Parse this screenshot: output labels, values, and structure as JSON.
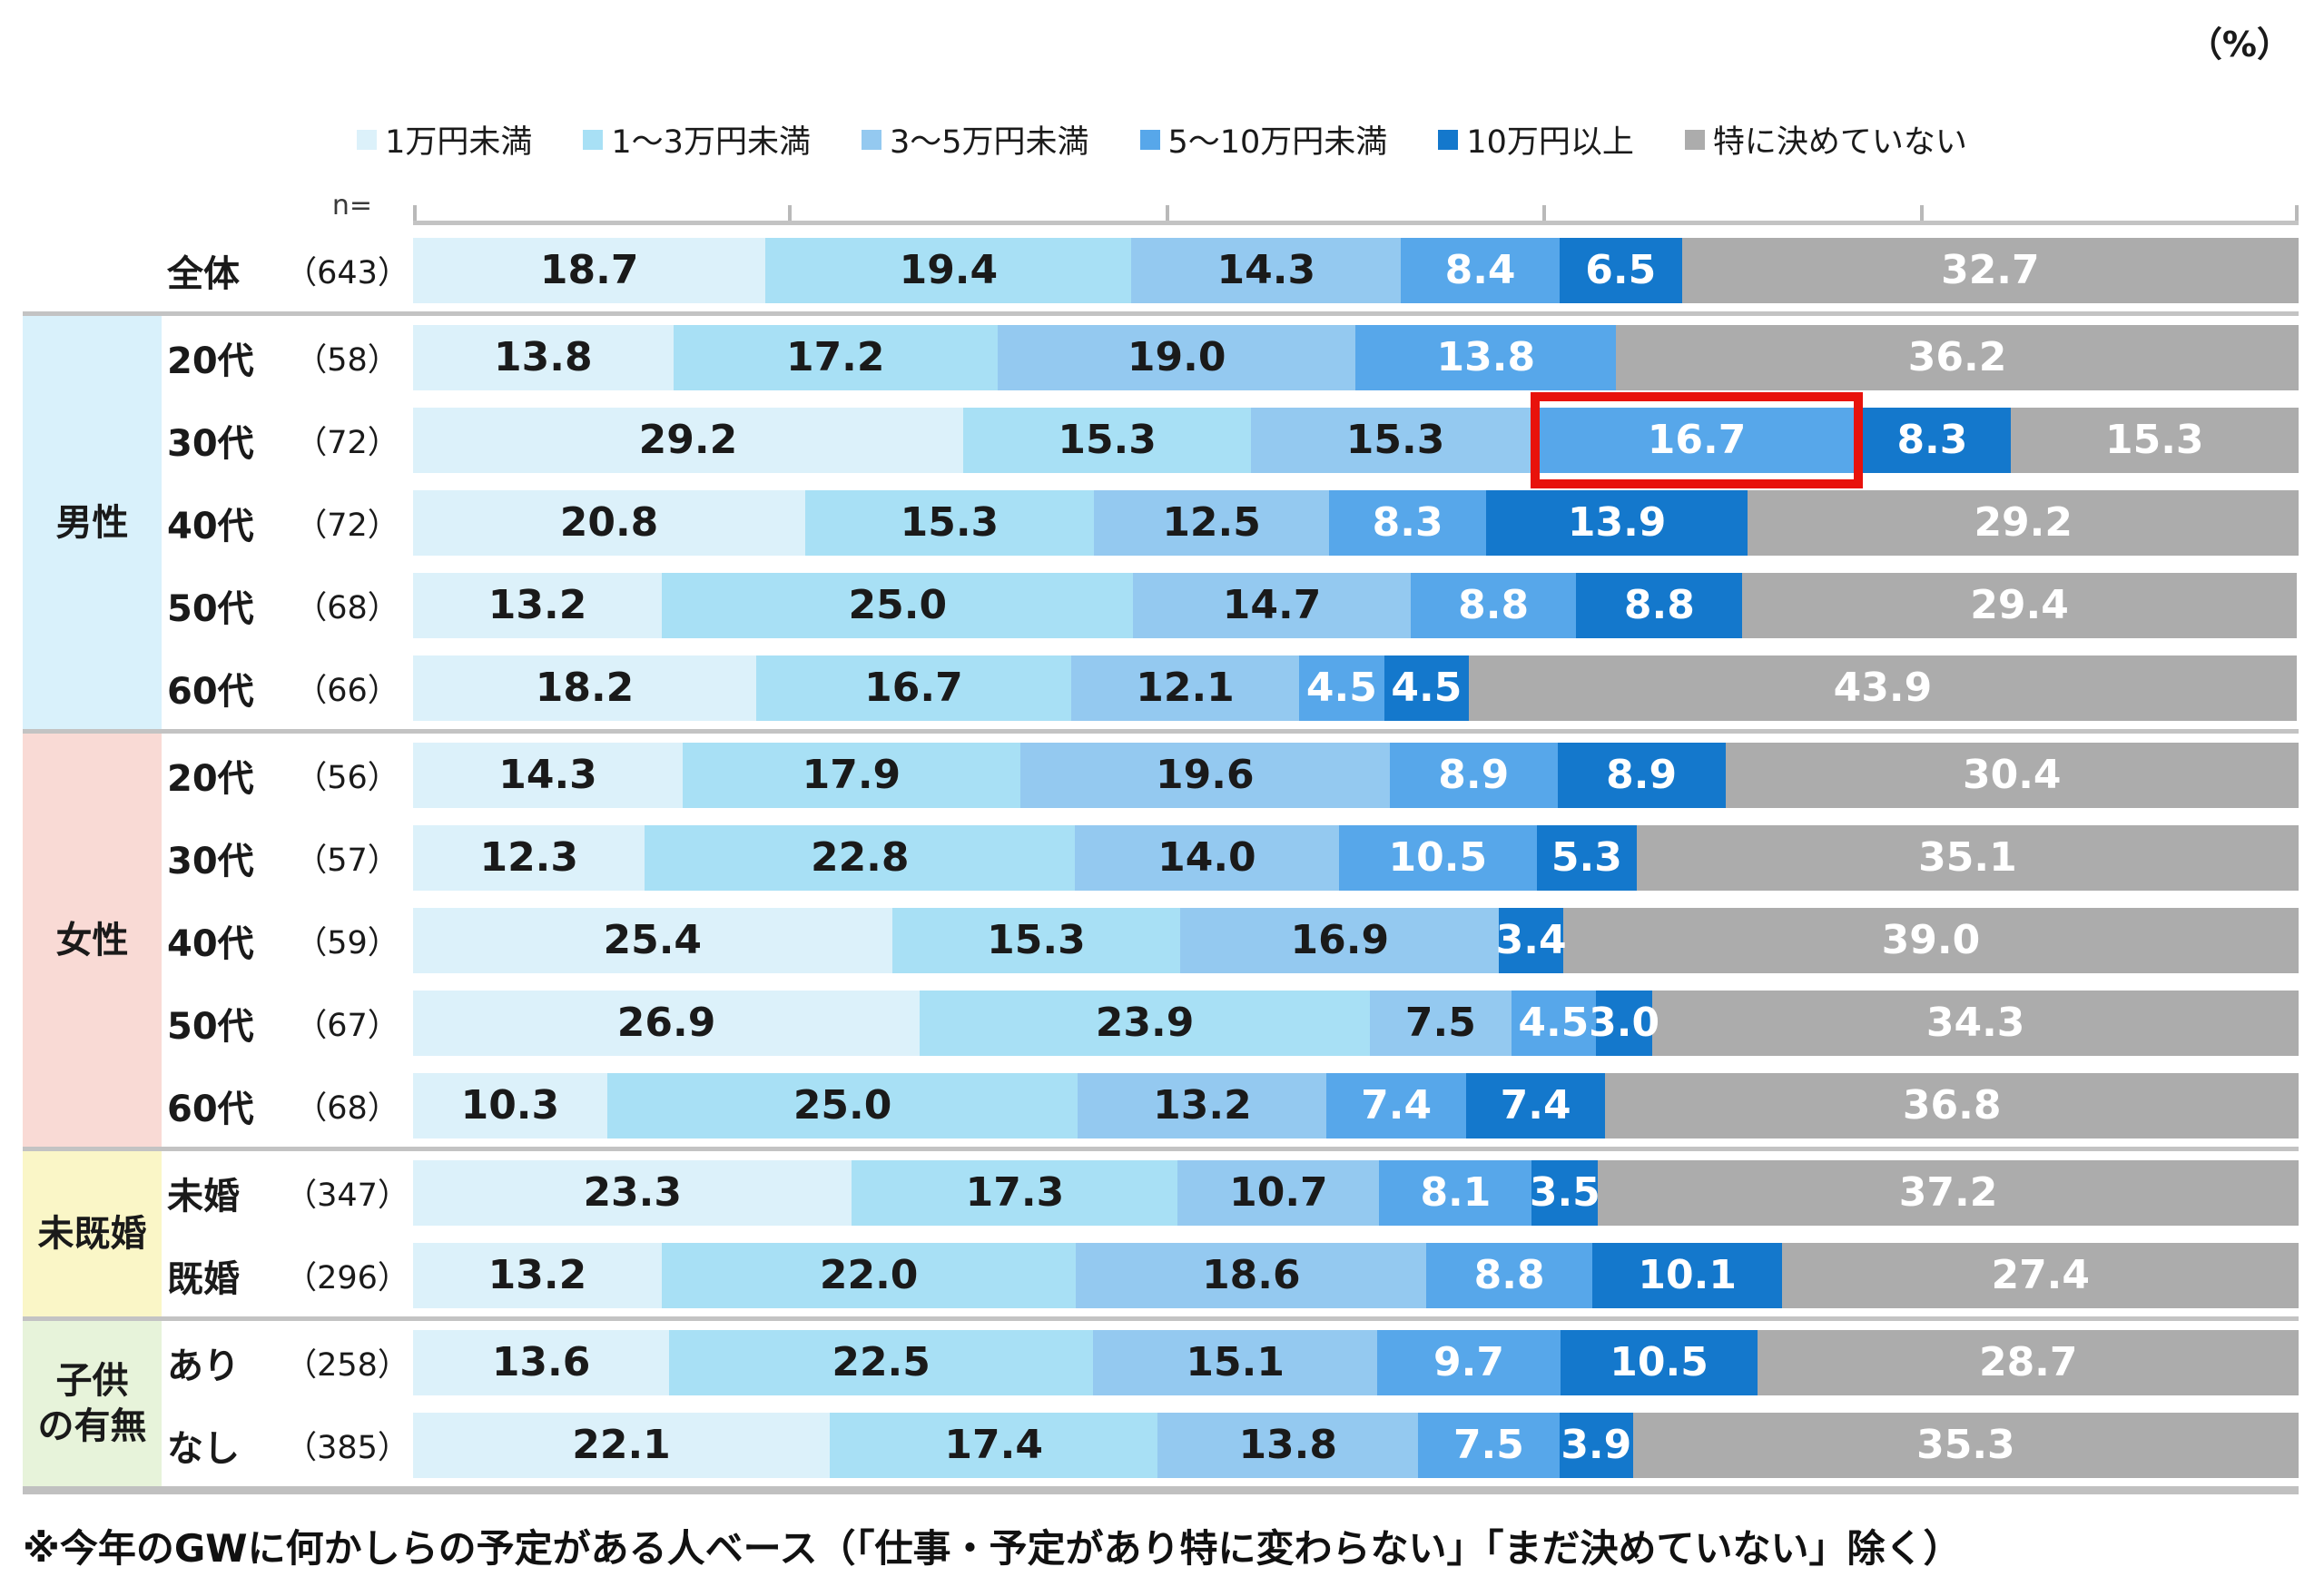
{
  "unit_label": "（%）",
  "n_header": "n=",
  "footnote": "※今年のGWに何かしらの予定がある人ベース（「仕事・予定があり特に変わらない」「まだ決めていない」除く）",
  "chart_data": {
    "type": "bar",
    "stacked": true,
    "orientation": "horizontal",
    "unit": "%",
    "xlim": [
      0,
      100
    ],
    "x_ticks": [
      0,
      20,
      40,
      60,
      80,
      100
    ],
    "legend_position": "top",
    "grid": false,
    "series_labels": [
      "1万円未満",
      "1〜3万円未満",
      "3〜5万円未満",
      "5〜10万円未満",
      "10万円以上",
      "特に決めていない"
    ],
    "series_colors": [
      "#DCF1FA",
      "#A8E0F5",
      "#94C9F0",
      "#57A7EA",
      "#1478CC",
      "#ACACAC"
    ],
    "label_text_colors": [
      "#1a1a1a",
      "#1a1a1a",
      "#1a1a1a",
      "#ffffff",
      "#ffffff",
      "#ffffff"
    ],
    "highlight_color": "#E8120C",
    "groups": [
      {
        "label": "",
        "bg": "transparent",
        "rows": [
          {
            "label": "全体",
            "n": "（643）",
            "values": [
              18.7,
              19.4,
              14.3,
              8.4,
              6.5,
              32.7
            ]
          }
        ]
      },
      {
        "label": "男性",
        "bg": "#D9F1FB",
        "rows": [
          {
            "label": "20代",
            "n": "（58）",
            "values": [
              13.8,
              17.2,
              19.0,
              13.8,
              0,
              36.2
            ]
          },
          {
            "label": "30代",
            "n": "（72）",
            "values": [
              29.2,
              15.3,
              15.3,
              16.7,
              8.3,
              15.3
            ],
            "highlight_segment": 3
          },
          {
            "label": "40代",
            "n": "（72）",
            "values": [
              20.8,
              15.3,
              12.5,
              8.3,
              13.9,
              29.2
            ]
          },
          {
            "label": "50代",
            "n": "（68）",
            "values": [
              13.2,
              25.0,
              14.7,
              8.8,
              8.8,
              29.4
            ]
          },
          {
            "label": "60代",
            "n": "（66）",
            "values": [
              18.2,
              16.7,
              12.1,
              4.5,
              4.5,
              43.9
            ]
          }
        ]
      },
      {
        "label": "女性",
        "bg": "#F9DAD5",
        "rows": [
          {
            "label": "20代",
            "n": "（56）",
            "values": [
              14.3,
              17.9,
              19.6,
              8.9,
              8.9,
              30.4
            ]
          },
          {
            "label": "30代",
            "n": "（57）",
            "values": [
              12.3,
              22.8,
              14.0,
              10.5,
              5.3,
              35.1
            ]
          },
          {
            "label": "40代",
            "n": "（59）",
            "values": [
              25.4,
              15.3,
              16.9,
              0,
              3.4,
              39.0
            ]
          },
          {
            "label": "50代",
            "n": "（67）",
            "values": [
              26.9,
              23.9,
              7.5,
              4.5,
              3.0,
              34.3
            ]
          },
          {
            "label": "60代",
            "n": "（68）",
            "values": [
              10.3,
              25.0,
              13.2,
              7.4,
              7.4,
              36.8
            ]
          }
        ]
      },
      {
        "label": "未既婚",
        "bg": "#FAF6C7",
        "rows": [
          {
            "label": "未婚",
            "n": "（347）",
            "values": [
              23.3,
              17.3,
              10.7,
              8.1,
              3.5,
              37.2
            ]
          },
          {
            "label": "既婚",
            "n": "（296）",
            "values": [
              13.2,
              22.0,
              18.6,
              8.8,
              10.1,
              27.4
            ]
          }
        ]
      },
      {
        "label": "子供\nの有無",
        "bg": "#E7F3DA",
        "rows": [
          {
            "label": "あり",
            "n": "（258）",
            "values": [
              13.6,
              22.5,
              15.1,
              9.7,
              10.5,
              28.7
            ]
          },
          {
            "label": "なし",
            "n": "（385）",
            "values": [
              22.1,
              17.4,
              13.8,
              7.5,
              3.9,
              35.3
            ]
          }
        ]
      }
    ]
  }
}
